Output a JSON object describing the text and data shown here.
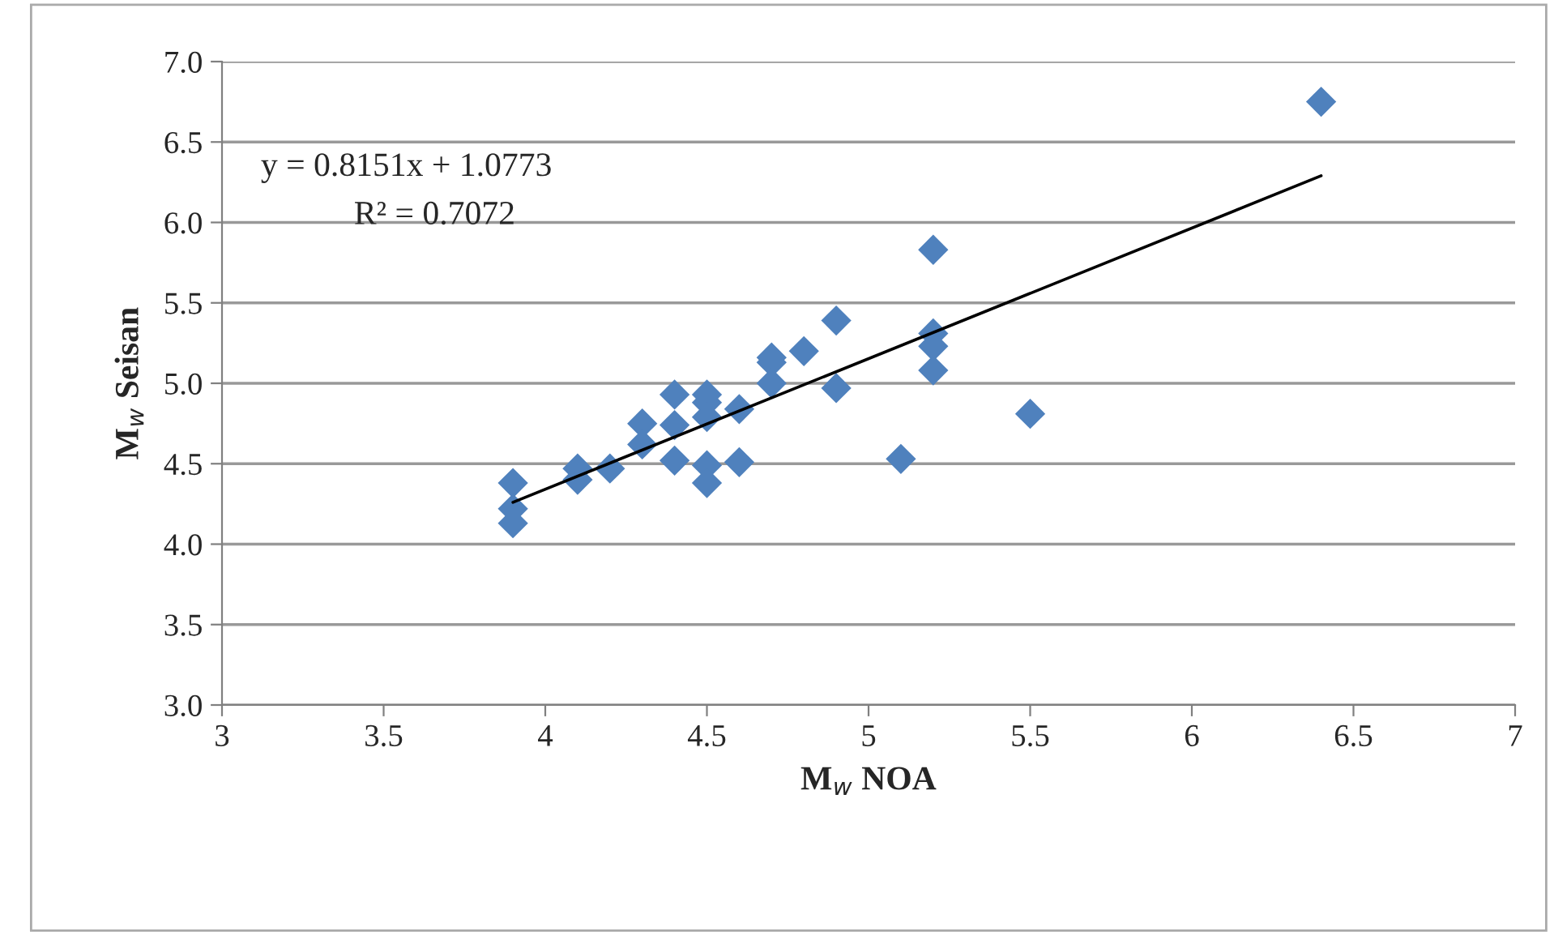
{
  "chart_data": {
    "type": "scatter",
    "xlabel": "M$_{w}$ NOA",
    "ylabel": "M$_{w}$ Seisan",
    "xlim": [
      3,
      7
    ],
    "xticks": [
      3,
      3.5,
      4,
      4.5,
      5,
      5.5,
      6,
      6.5,
      7
    ],
    "ylim": [
      3.0,
      7.0
    ],
    "yticks": [
      {
        "value": 3,
        "label": "3.0"
      },
      {
        "value": 3.5,
        "label": "3.5"
      },
      {
        "value": 4,
        "label": "4.0"
      },
      {
        "value": 4.5,
        "label": "4.5"
      },
      {
        "value": 5,
        "label": "5.0"
      },
      {
        "value": 5.5,
        "label": "5.5"
      },
      {
        "value": 6,
        "label": "6.0"
      },
      {
        "value": 6.5,
        "label": "6.5"
      },
      {
        "value": 7,
        "label": "7.0"
      }
    ],
    "grid": "y",
    "legend": false,
    "series": [
      {
        "marker": "diamond",
        "color": "#4f81bd",
        "x": [
          3.9,
          3.9,
          3.9,
          4.1,
          4.1,
          4.2,
          4.3,
          4.3,
          4.4,
          4.4,
          4.4,
          4.5,
          4.5,
          4.5,
          4.5,
          4.5,
          4.6,
          4.6,
          4.7,
          4.7,
          4.7,
          4.8,
          4.9,
          4.9,
          5.1,
          5.2,
          5.2,
          5.2,
          5.2,
          5.5,
          6.4
        ],
        "values": [
          4.38,
          4.22,
          4.13,
          4.47,
          4.4,
          4.47,
          4.75,
          4.62,
          4.93,
          4.74,
          4.52,
          4.93,
          4.88,
          4.79,
          4.49,
          4.38,
          4.84,
          4.51,
          5.16,
          5.13,
          5.0,
          5.2,
          5.39,
          4.97,
          4.53,
          5.83,
          5.31,
          5.23,
          5.08,
          4.81,
          6.75
        ]
      },
      {
        "type": "line",
        "marker": "none",
        "line_style": "solid",
        "color": "#000000",
        "x": [
          3.9,
          6.4
        ],
        "values": [
          4.26,
          6.29
        ]
      }
    ],
    "annotations": [
      "y = 0.8151x + 1.0773",
      "R² = 0.7072"
    ]
  }
}
